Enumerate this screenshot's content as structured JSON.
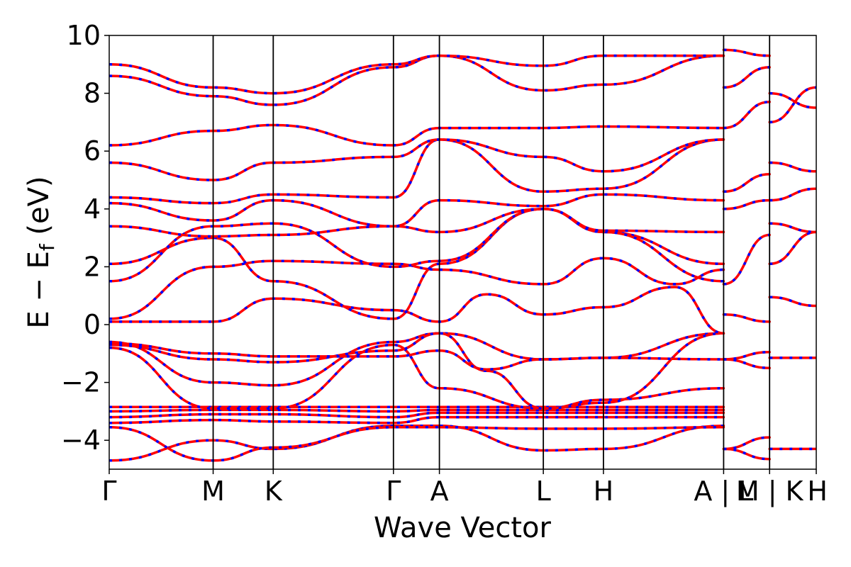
{
  "chart_data": {
    "type": "line",
    "title": "",
    "xlabel": "Wave Vector",
    "ylabel_main": "E − E",
    "ylabel_sub": "f",
    "ylabel_unit": " (eV)",
    "ylim": [
      -5,
      10
    ],
    "yticks": [
      {
        "value": -4,
        "label": "−4"
      },
      {
        "value": -2,
        "label": "−2"
      },
      {
        "value": 0,
        "label": "0"
      },
      {
        "value": 2,
        "label": "2"
      },
      {
        "value": 4,
        "label": "4"
      },
      {
        "value": 6,
        "label": "6"
      },
      {
        "value": 8,
        "label": "8"
      },
      {
        "value": 10,
        "label": "10"
      }
    ],
    "xlim": [
      0,
      1
    ],
    "kpoints": [
      {
        "pos": 0.0,
        "label": "Γ"
      },
      {
        "pos": 0.147,
        "label": "M"
      },
      {
        "pos": 0.232,
        "label": "K"
      },
      {
        "pos": 0.402,
        "label": "Γ"
      },
      {
        "pos": 0.467,
        "label": "A"
      },
      {
        "pos": 0.614,
        "label": "L"
      },
      {
        "pos": 0.699,
        "label": "H"
      },
      {
        "pos": 0.869,
        "label": "A | L"
      },
      {
        "pos": 0.934,
        "label": "M | K"
      },
      {
        "pos": 1.0,
        "label": "H"
      }
    ],
    "colors": {
      "series_a": "#ff0000",
      "series_b": "#0000ff"
    },
    "series": [
      {
        "points": [
          [
            0,
            -4.7
          ],
          [
            0.147,
            -4.0
          ],
          [
            0.232,
            -4.3
          ],
          [
            0.402,
            -3.5
          ],
          [
            0.467,
            -3.5
          ],
          [
            0.614,
            -4.35
          ],
          [
            0.699,
            -4.3
          ],
          [
            0.869,
            -3.5
          ]
        ]
      },
      {
        "points": [
          [
            0,
            -3.55
          ],
          [
            0.147,
            -4.7
          ],
          [
            0.232,
            -4.25
          ],
          [
            0.402,
            -3.55
          ],
          [
            0.467,
            -3.55
          ],
          [
            0.614,
            -3.6
          ],
          [
            0.699,
            -3.6
          ],
          [
            0.869,
            -3.55
          ]
        ]
      },
      {
        "points": [
          [
            0,
            -3.4
          ],
          [
            0.147,
            -3.3
          ],
          [
            0.232,
            -3.35
          ],
          [
            0.402,
            -3.4
          ],
          [
            0.467,
            -3.2
          ],
          [
            0.614,
            -3.2
          ],
          [
            0.699,
            -3.2
          ],
          [
            0.869,
            -3.2
          ]
        ]
      },
      {
        "points": [
          [
            0,
            -3.2
          ],
          [
            0.147,
            -3.1
          ],
          [
            0.232,
            -3.1
          ],
          [
            0.402,
            -3.2
          ],
          [
            0.467,
            -3.05
          ],
          [
            0.614,
            -3.05
          ],
          [
            0.699,
            -3.05
          ],
          [
            0.869,
            -3.05
          ]
        ]
      },
      {
        "points": [
          [
            0,
            -3.0
          ],
          [
            0.147,
            -2.95
          ],
          [
            0.232,
            -2.95
          ],
          [
            0.402,
            -3.0
          ],
          [
            0.467,
            -2.95
          ],
          [
            0.614,
            -2.95
          ],
          [
            0.699,
            -2.95
          ],
          [
            0.869,
            -2.95
          ]
        ]
      },
      {
        "points": [
          [
            0,
            -2.85
          ],
          [
            0.147,
            -2.85
          ],
          [
            0.232,
            -2.85
          ],
          [
            0.402,
            -2.85
          ],
          [
            0.467,
            -2.85
          ],
          [
            0.614,
            -2.85
          ],
          [
            0.699,
            -2.85
          ],
          [
            0.869,
            -2.85
          ]
        ]
      },
      {
        "points": [
          [
            0,
            -0.8
          ],
          [
            0.147,
            -2.9
          ],
          [
            0.232,
            -2.9
          ],
          [
            0.402,
            -0.7
          ],
          [
            0.467,
            -2.2
          ],
          [
            0.614,
            -2.9
          ],
          [
            0.699,
            -2.6
          ],
          [
            0.869,
            -2.2
          ]
        ]
      },
      {
        "points": [
          [
            0,
            -0.6
          ],
          [
            0.147,
            -2.0
          ],
          [
            0.232,
            -2.1
          ],
          [
            0.402,
            -0.6
          ],
          [
            0.467,
            -0.3
          ],
          [
            0.614,
            -1.2
          ],
          [
            0.699,
            -1.15
          ],
          [
            0.869,
            -0.3
          ]
        ]
      },
      {
        "points": [
          [
            0,
            -0.7
          ],
          [
            0.147,
            -1.2
          ],
          [
            0.232,
            -1.3
          ],
          [
            0.402,
            -0.9
          ],
          [
            0.467,
            -0.3
          ],
          [
            0.534,
            -1.6
          ],
          [
            0.614,
            -2.9
          ],
          [
            0.699,
            -2.7
          ],
          [
            0.869,
            -0.3
          ]
        ]
      },
      {
        "points": [
          [
            0,
            -0.65
          ],
          [
            0.147,
            -1.0
          ],
          [
            0.232,
            -1.1
          ],
          [
            0.402,
            -1.1
          ],
          [
            0.467,
            -0.9
          ],
          [
            0.534,
            -1.55
          ],
          [
            0.614,
            -1.2
          ],
          [
            0.699,
            -1.15
          ],
          [
            0.869,
            -1.2
          ]
        ]
      },
      {
        "points": [
          [
            0,
            0.1
          ],
          [
            0.147,
            0.1
          ],
          [
            0.232,
            0.9
          ],
          [
            0.402,
            0.5
          ],
          [
            0.467,
            0.1
          ],
          [
            0.534,
            1.05
          ],
          [
            0.614,
            0.35
          ],
          [
            0.699,
            0.6
          ],
          [
            0.8,
            1.3
          ],
          [
            0.869,
            -0.3
          ]
        ]
      },
      {
        "points": [
          [
            0,
            0.2
          ],
          [
            0.147,
            2.0
          ],
          [
            0.232,
            2.2
          ],
          [
            0.402,
            2.1
          ],
          [
            0.467,
            1.9
          ],
          [
            0.614,
            1.4
          ],
          [
            0.699,
            2.3
          ],
          [
            0.8,
            1.4
          ],
          [
            0.869,
            1.9
          ]
        ]
      },
      {
        "points": [
          [
            0,
            2.1
          ],
          [
            0.147,
            3.0
          ],
          [
            0.232,
            1.5
          ],
          [
            0.402,
            0.2
          ],
          [
            0.467,
            2.1
          ],
          [
            0.614,
            4.0
          ],
          [
            0.699,
            3.2
          ],
          [
            0.869,
            2.1
          ]
        ]
      },
      {
        "points": [
          [
            0,
            1.5
          ],
          [
            0.147,
            3.4
          ],
          [
            0.232,
            3.5
          ],
          [
            0.402,
            2.0
          ],
          [
            0.467,
            2.2
          ],
          [
            0.614,
            4.0
          ],
          [
            0.699,
            3.2
          ],
          [
            0.869,
            1.5
          ]
        ]
      },
      {
        "points": [
          [
            0,
            3.4
          ],
          [
            0.147,
            3.05
          ],
          [
            0.232,
            3.1
          ],
          [
            0.402,
            3.4
          ],
          [
            0.467,
            3.2
          ],
          [
            0.614,
            4.0
          ],
          [
            0.699,
            3.25
          ],
          [
            0.869,
            3.2
          ]
        ]
      },
      {
        "points": [
          [
            0,
            4.2
          ],
          [
            0.147,
            3.6
          ],
          [
            0.232,
            4.3
          ],
          [
            0.402,
            3.4
          ],
          [
            0.467,
            4.3
          ],
          [
            0.614,
            4.1
          ],
          [
            0.699,
            4.5
          ],
          [
            0.869,
            4.3
          ]
        ]
      },
      {
        "points": [
          [
            0,
            4.4
          ],
          [
            0.147,
            4.2
          ],
          [
            0.232,
            4.5
          ],
          [
            0.402,
            4.4
          ],
          [
            0.467,
            6.4
          ],
          [
            0.614,
            4.6
          ],
          [
            0.699,
            4.7
          ],
          [
            0.869,
            6.4
          ]
        ]
      },
      {
        "points": [
          [
            0,
            5.6
          ],
          [
            0.147,
            5.0
          ],
          [
            0.232,
            5.6
          ],
          [
            0.402,
            5.8
          ],
          [
            0.467,
            6.4
          ],
          [
            0.614,
            5.8
          ],
          [
            0.699,
            5.3
          ],
          [
            0.869,
            6.4
          ]
        ]
      },
      {
        "points": [
          [
            0,
            6.2
          ],
          [
            0.147,
            6.7
          ],
          [
            0.232,
            6.9
          ],
          [
            0.402,
            6.2
          ],
          [
            0.467,
            6.8
          ],
          [
            0.614,
            6.8
          ],
          [
            0.699,
            6.85
          ],
          [
            0.869,
            6.8
          ]
        ]
      },
      {
        "points": [
          [
            0,
            8.6
          ],
          [
            0.147,
            7.9
          ],
          [
            0.232,
            7.6
          ],
          [
            0.402,
            8.9
          ],
          [
            0.467,
            9.3
          ],
          [
            0.614,
            8.1
          ],
          [
            0.699,
            8.3
          ],
          [
            0.869,
            9.3
          ]
        ]
      },
      {
        "points": [
          [
            0,
            9.0
          ],
          [
            0.147,
            8.2
          ],
          [
            0.232,
            8.0
          ],
          [
            0.402,
            9.0
          ],
          [
            0.467,
            9.3
          ],
          [
            0.614,
            8.95
          ],
          [
            0.699,
            9.3
          ],
          [
            0.869,
            9.3
          ]
        ]
      },
      {
        "points": [
          [
            0.869,
            -4.3
          ],
          [
            0.934,
            -3.9
          ]
        ]
      },
      {
        "points": [
          [
            0.869,
            -4.3
          ],
          [
            0.934,
            -4.65
          ]
        ]
      },
      {
        "points": [
          [
            0.869,
            -1.2
          ],
          [
            0.934,
            -0.95
          ]
        ]
      },
      {
        "points": [
          [
            0.869,
            -1.2
          ],
          [
            0.934,
            -1.5
          ]
        ]
      },
      {
        "points": [
          [
            0.869,
            0.35
          ],
          [
            0.934,
            0.1
          ]
        ]
      },
      {
        "points": [
          [
            0.869,
            1.4
          ],
          [
            0.934,
            3.1
          ]
        ]
      },
      {
        "points": [
          [
            0.869,
            4.0
          ],
          [
            0.934,
            4.3
          ]
        ]
      },
      {
        "points": [
          [
            0.869,
            4.6
          ],
          [
            0.934,
            5.2
          ]
        ]
      },
      {
        "points": [
          [
            0.869,
            6.8
          ],
          [
            0.934,
            7.7
          ]
        ]
      },
      {
        "points": [
          [
            0.869,
            8.2
          ],
          [
            0.934,
            8.9
          ]
        ]
      },
      {
        "points": [
          [
            0.869,
            9.5
          ],
          [
            0.934,
            9.3
          ]
        ]
      },
      {
        "points": [
          [
            0.934,
            -4.3
          ],
          [
            1.0,
            -4.3
          ]
        ]
      },
      {
        "points": [
          [
            0.934,
            -1.15
          ],
          [
            1.0,
            -1.15
          ]
        ]
      },
      {
        "points": [
          [
            0.934,
            0.95
          ],
          [
            1.0,
            0.65
          ]
        ]
      },
      {
        "points": [
          [
            0.934,
            2.1
          ],
          [
            1.0,
            3.2
          ]
        ]
      },
      {
        "points": [
          [
            0.934,
            3.5
          ],
          [
            1.0,
            3.2
          ]
        ]
      },
      {
        "points": [
          [
            0.934,
            4.3
          ],
          [
            1.0,
            4.7
          ]
        ]
      },
      {
        "points": [
          [
            0.934,
            5.6
          ],
          [
            1.0,
            5.3
          ]
        ]
      },
      {
        "points": [
          [
            0.934,
            7.0
          ],
          [
            1.0,
            8.2
          ]
        ]
      },
      {
        "points": [
          [
            0.934,
            8.0
          ],
          [
            1.0,
            7.5
          ]
        ]
      }
    ]
  }
}
